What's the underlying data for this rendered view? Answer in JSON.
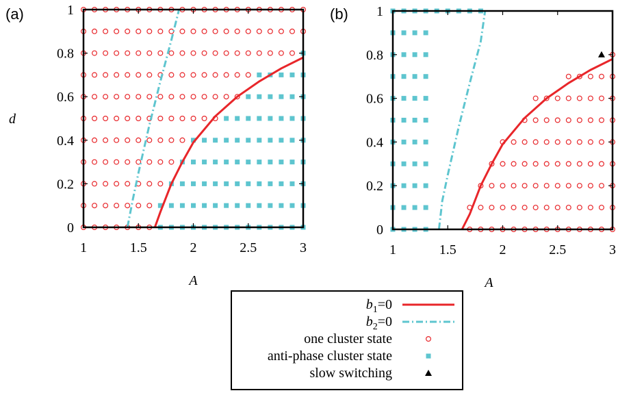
{
  "chart_data": [
    {
      "panel": "(a)",
      "type": "scatter",
      "xlabel": "A",
      "ylabel": "d",
      "xlim": [
        1,
        3
      ],
      "ylim": [
        0,
        1
      ],
      "xticks": [
        "1",
        "1.5",
        "2",
        "2.5",
        "3"
      ],
      "yticks": [
        "0",
        "0.2",
        "0.4",
        "0.6",
        "0.8",
        "1"
      ],
      "boundaries": [
        {
          "legend": "b1=0",
          "color": "#e8262a",
          "style": "solid",
          "points": [
            [
              1.65,
              0
            ],
            [
              1.7,
              0.07
            ],
            [
              1.8,
              0.2
            ],
            [
              1.9,
              0.3
            ],
            [
              2.0,
              0.39
            ],
            [
              2.2,
              0.51
            ],
            [
              2.4,
              0.6
            ],
            [
              2.6,
              0.67
            ],
            [
              2.8,
              0.73
            ],
            [
              3.0,
              0.78
            ]
          ]
        },
        {
          "legend": "b2=0",
          "color": "#5ec5cf",
          "style": "dash-dot",
          "points": [
            [
              1.4,
              0
            ],
            [
              1.45,
              0.13
            ],
            [
              1.5,
              0.25
            ],
            [
              1.6,
              0.47
            ],
            [
              1.7,
              0.67
            ],
            [
              1.8,
              0.86
            ],
            [
              1.87,
              1.0
            ]
          ]
        }
      ],
      "series": [
        {
          "legend": "one cluster state",
          "marker": "circle",
          "color": "#e8262a",
          "rows": [
            {
              "d": 1.0,
              "A_from": 1.0,
              "A_to": 3.0
            },
            {
              "d": 0.9,
              "A_from": 1.0,
              "A_to": 3.0
            },
            {
              "d": 0.8,
              "A_from": 1.0,
              "A_to": 2.9
            },
            {
              "d": 0.7,
              "A_from": 1.0,
              "A_to": 2.5
            },
            {
              "d": 0.6,
              "A_from": 1.0,
              "A_to": 2.4
            },
            {
              "d": 0.5,
              "A_from": 1.0,
              "A_to": 2.2
            },
            {
              "d": 0.4,
              "A_from": 1.0,
              "A_to": 1.9
            },
            {
              "d": 0.3,
              "A_from": 1.0,
              "A_to": 1.8
            },
            {
              "d": 0.2,
              "A_from": 1.0,
              "A_to": 1.7
            },
            {
              "d": 0.1,
              "A_from": 1.0,
              "A_to": 1.6
            },
            {
              "d": 0.0,
              "A_from": 1.0,
              "A_to": 1.6
            }
          ]
        },
        {
          "legend": "anti-phase cluster state",
          "marker": "square",
          "color": "#5ec5cf",
          "rows": [
            {
              "d": 0.8,
              "A_from": 3.0,
              "A_to": 3.0
            },
            {
              "d": 0.7,
              "A_from": 2.6,
              "A_to": 3.0
            },
            {
              "d": 0.6,
              "A_from": 2.5,
              "A_to": 3.0
            },
            {
              "d": 0.5,
              "A_from": 2.3,
              "A_to": 3.0
            },
            {
              "d": 0.4,
              "A_from": 2.0,
              "A_to": 3.0
            },
            {
              "d": 0.3,
              "A_from": 1.9,
              "A_to": 3.0
            },
            {
              "d": 0.2,
              "A_from": 1.8,
              "A_to": 3.0
            },
            {
              "d": 0.1,
              "A_from": 1.7,
              "A_to": 3.0
            },
            {
              "d": 0.0,
              "A_from": 1.7,
              "A_to": 3.0
            }
          ]
        }
      ]
    },
    {
      "panel": "(b)",
      "type": "scatter",
      "xlabel": "A",
      "ylabel": "",
      "xlim": [
        1,
        3
      ],
      "ylim": [
        0,
        1
      ],
      "xticks": [
        "1",
        "1.5",
        "2",
        "2.5",
        "3"
      ],
      "yticks": [
        "0",
        "0.2",
        "0.4",
        "0.6",
        "0.8",
        "1"
      ],
      "boundaries": [
        {
          "legend": "b1=0",
          "color": "#e8262a",
          "style": "solid",
          "points": [
            [
              1.63,
              0
            ],
            [
              1.7,
              0.07
            ],
            [
              1.8,
              0.2
            ],
            [
              1.9,
              0.3
            ],
            [
              2.0,
              0.39
            ],
            [
              2.2,
              0.51
            ],
            [
              2.4,
              0.6
            ],
            [
              2.6,
              0.67
            ],
            [
              2.8,
              0.73
            ],
            [
              3.0,
              0.78
            ]
          ]
        },
        {
          "legend": "b2=0",
          "color": "#5ec5cf",
          "style": "dash-dot",
          "points": [
            [
              1.42,
              0
            ],
            [
              1.45,
              0.13
            ],
            [
              1.5,
              0.25
            ],
            [
              1.6,
              0.47
            ],
            [
              1.7,
              0.67
            ],
            [
              1.8,
              0.86
            ],
            [
              1.84,
              1.0
            ]
          ]
        }
      ],
      "series": [
        {
          "legend": "one cluster state",
          "marker": "circle",
          "color": "#e8262a",
          "rows": [
            {
              "d": 0.8,
              "A_from": 3.0,
              "A_to": 3.0
            },
            {
              "d": 0.7,
              "A_from": 2.6,
              "A_to": 3.0
            },
            {
              "d": 0.6,
              "A_from": 2.3,
              "A_to": 3.0
            },
            {
              "d": 0.5,
              "A_from": 2.2,
              "A_to": 3.0
            },
            {
              "d": 0.4,
              "A_from": 2.0,
              "A_to": 3.0
            },
            {
              "d": 0.3,
              "A_from": 1.9,
              "A_to": 3.0
            },
            {
              "d": 0.2,
              "A_from": 1.8,
              "A_to": 3.0
            },
            {
              "d": 0.1,
              "A_from": 1.7,
              "A_to": 3.0
            },
            {
              "d": 0.0,
              "A_from": 1.7,
              "A_to": 3.0
            }
          ]
        },
        {
          "legend": "anti-phase cluster state",
          "marker": "square",
          "color": "#5ec5cf",
          "rows": [
            {
              "d": 1.0,
              "A_from": 1.0,
              "A_to": 1.8
            },
            {
              "d": 0.9,
              "A_from": 1.0,
              "A_to": 1.3
            },
            {
              "d": 0.8,
              "A_from": 1.0,
              "A_to": 1.3
            },
            {
              "d": 0.7,
              "A_from": 1.0,
              "A_to": 1.3
            },
            {
              "d": 0.6,
              "A_from": 1.0,
              "A_to": 1.3
            },
            {
              "d": 0.5,
              "A_from": 1.0,
              "A_to": 1.3
            },
            {
              "d": 0.4,
              "A_from": 1.0,
              "A_to": 1.3
            },
            {
              "d": 0.3,
              "A_from": 1.0,
              "A_to": 1.3
            },
            {
              "d": 0.2,
              "A_from": 1.0,
              "A_to": 1.3
            },
            {
              "d": 0.1,
              "A_from": 1.0,
              "A_to": 1.3
            },
            {
              "d": 0.0,
              "A_from": 1.0,
              "A_to": 1.3
            }
          ]
        },
        {
          "legend": "slow switching",
          "marker": "triangle",
          "color": "#000000",
          "points": [
            [
              2.9,
              0.8
            ]
          ]
        }
      ]
    }
  ],
  "legend": {
    "entries": [
      {
        "label_main": "b",
        "label_sub": "1",
        "label_rest": "=0",
        "kind": "line-solid",
        "color": "#e8262a"
      },
      {
        "label_main": "b",
        "label_sub": "2",
        "label_rest": "=0",
        "kind": "line-dashdot",
        "color": "#5ec5cf"
      },
      {
        "label_main": "one cluster state",
        "label_sub": "",
        "label_rest": "",
        "kind": "circle",
        "color": "#e8262a"
      },
      {
        "label_main": "anti-phase cluster state",
        "label_sub": "",
        "label_rest": "",
        "kind": "square",
        "color": "#5ec5cf"
      },
      {
        "label_main": "slow switching",
        "label_sub": "",
        "label_rest": "",
        "kind": "triangle",
        "color": "#000000"
      }
    ]
  }
}
